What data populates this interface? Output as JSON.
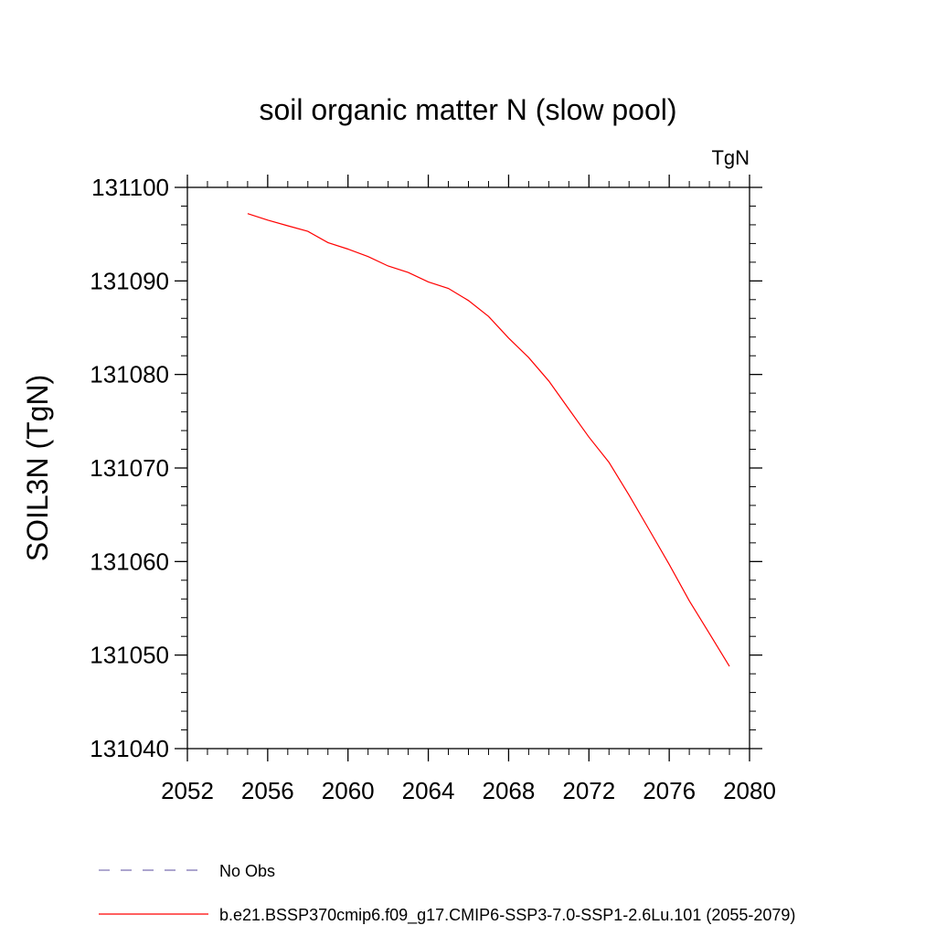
{
  "chart_data": {
    "type": "line",
    "title": "soil organic matter N (slow pool)",
    "units": "TgN",
    "ylabel": "SOIL3N  (TgN)",
    "xlabel": "",
    "xlim": [
      2052,
      2080
    ],
    "ylim": [
      131040,
      131100
    ],
    "x_ticks": [
      "2052",
      "2056",
      "2060",
      "2064",
      "2068",
      "2072",
      "2076",
      "2080"
    ],
    "y_ticks": [
      "131040",
      "131050",
      "131060",
      "131070",
      "131080",
      "131090",
      "131100"
    ],
    "grid": false,
    "legend_position": "bottom",
    "series": [
      {
        "name": "No Obs",
        "style": "dashed",
        "color": "#7a6fb0",
        "x": [],
        "y": []
      },
      {
        "name": "b.e21.BSSP370cmip6.f09_g17.CMIP6-SSP3-7.0-SSP1-2.6Lu.101 (2055-2079)",
        "style": "solid",
        "color": "#ff0000",
        "x": [
          2055,
          2056,
          2057,
          2058,
          2059,
          2060,
          2061,
          2062,
          2063,
          2064,
          2065,
          2066,
          2067,
          2068,
          2069,
          2070,
          2071,
          2072,
          2073,
          2074,
          2075,
          2076,
          2077,
          2078,
          2079
        ],
        "y": [
          131097.2,
          131096.5,
          131095.9,
          131095.3,
          131094.1,
          131093.4,
          131092.6,
          131091.6,
          131090.9,
          131089.9,
          131089.2,
          131087.9,
          131086.2,
          131083.9,
          131081.8,
          131079.3,
          131076.3,
          131073.3,
          131070.6,
          131067.1,
          131063.4,
          131059.7,
          131055.8,
          131052.3,
          131048.8
        ]
      }
    ]
  }
}
